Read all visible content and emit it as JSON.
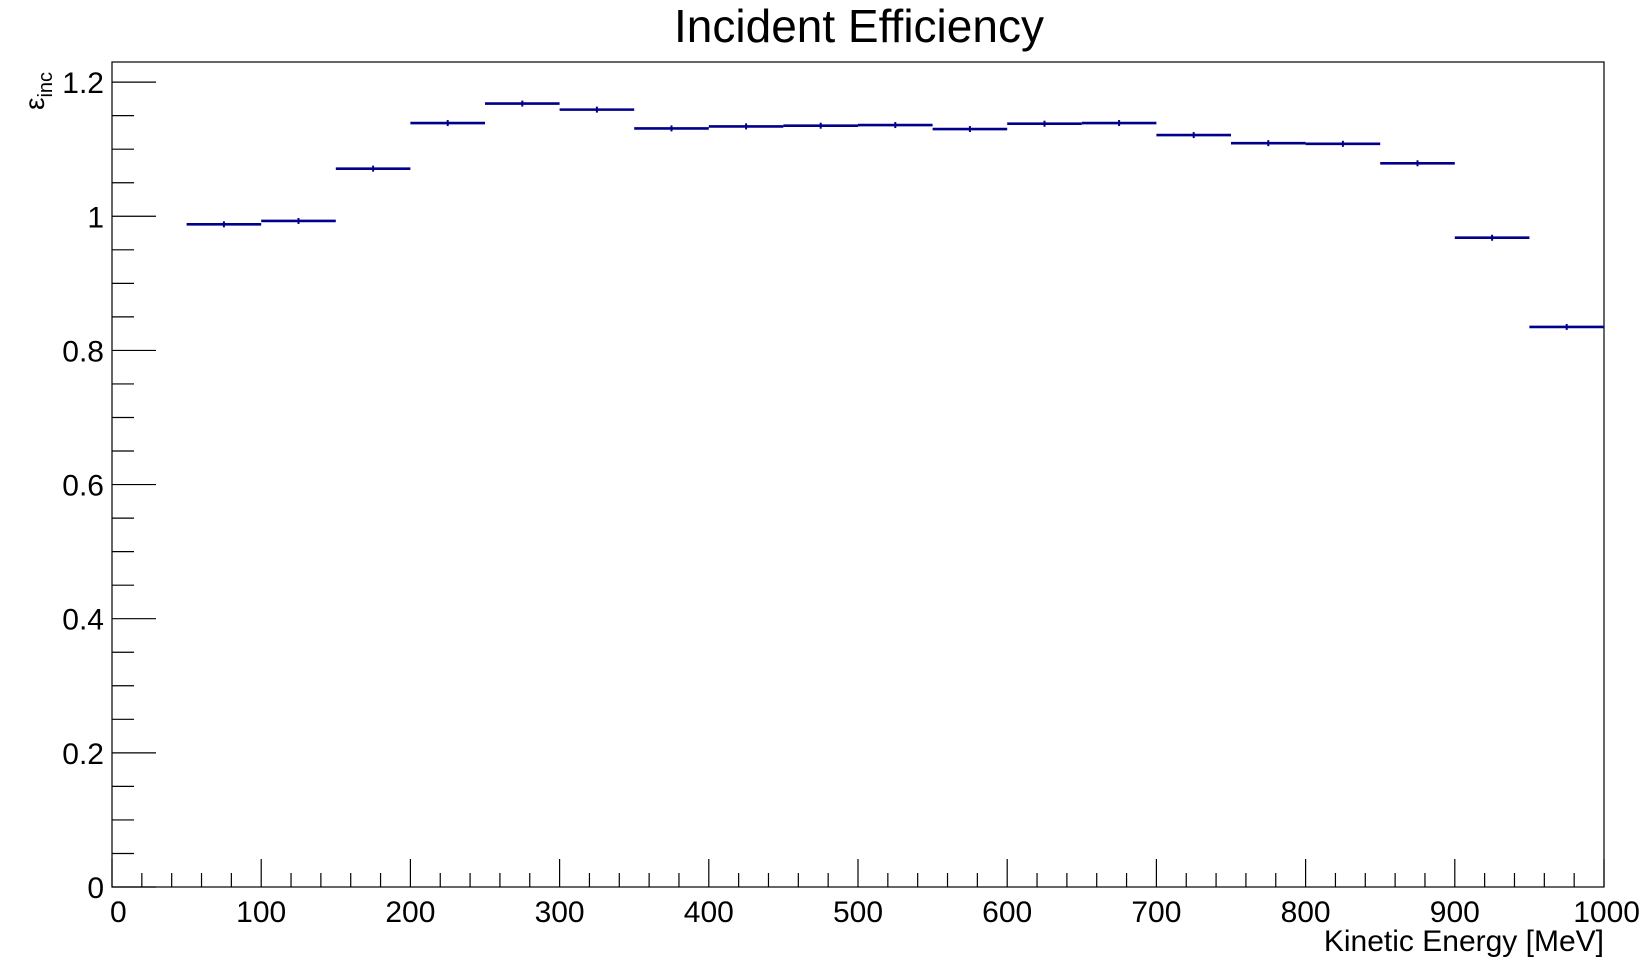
{
  "chart_data": {
    "type": "line",
    "title": "Incident Efficiency",
    "xlabel": "Kinetic Energy [MeV]",
    "ylabel_main": "ε",
    "ylabel_sub": "inc",
    "xlim": [
      0,
      1000
    ],
    "ylim": [
      0,
      1.23
    ],
    "x_ticks": [
      0,
      100,
      200,
      300,
      400,
      500,
      600,
      700,
      800,
      900,
      1000
    ],
    "x_tick_labels": [
      "0",
      "100",
      "200",
      "300",
      "400",
      "500",
      "600",
      "700",
      "800",
      "900",
      "1000"
    ],
    "y_ticks": [
      0,
      0.2,
      0.4,
      0.6,
      0.8,
      1,
      1.2
    ],
    "y_tick_labels": [
      "0",
      "0.2",
      "0.4",
      "0.6",
      "0.8",
      "1",
      "1.2"
    ],
    "grid": false,
    "legend": "none",
    "color": "#00008b",
    "bins": [
      {
        "x_low": 50,
        "x_high": 100,
        "y": 0.988
      },
      {
        "x_low": 100,
        "x_high": 150,
        "y": 0.993
      },
      {
        "x_low": 150,
        "x_high": 200,
        "y": 1.071
      },
      {
        "x_low": 200,
        "x_high": 250,
        "y": 1.139
      },
      {
        "x_low": 250,
        "x_high": 300,
        "y": 1.168
      },
      {
        "x_low": 300,
        "x_high": 350,
        "y": 1.159
      },
      {
        "x_low": 350,
        "x_high": 400,
        "y": 1.131
      },
      {
        "x_low": 400,
        "x_high": 450,
        "y": 1.134
      },
      {
        "x_low": 450,
        "x_high": 500,
        "y": 1.135
      },
      {
        "x_low": 500,
        "x_high": 550,
        "y": 1.136
      },
      {
        "x_low": 550,
        "x_high": 600,
        "y": 1.13
      },
      {
        "x_low": 600,
        "x_high": 650,
        "y": 1.138
      },
      {
        "x_low": 650,
        "x_high": 700,
        "y": 1.139
      },
      {
        "x_low": 700,
        "x_high": 750,
        "y": 1.121
      },
      {
        "x_low": 750,
        "x_high": 800,
        "y": 1.109
      },
      {
        "x_low": 800,
        "x_high": 850,
        "y": 1.108
      },
      {
        "x_low": 850,
        "x_high": 900,
        "y": 1.079
      },
      {
        "x_low": 900,
        "x_high": 950,
        "y": 0.968
      },
      {
        "x_low": 950,
        "x_high": 1000,
        "y": 0.835
      }
    ]
  }
}
